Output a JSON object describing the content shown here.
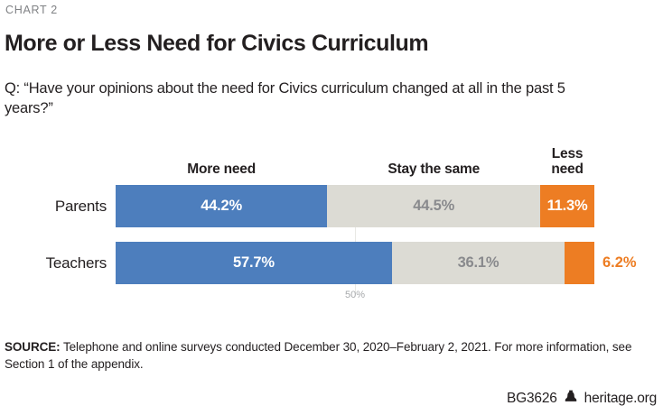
{
  "eyebrow": "CHART 2",
  "title": "More or Less Need for Civics Curriculum",
  "question": "Q: “Have your opinions about the need for Civics curriculum changed at all in the past 5 years?”",
  "chart_data": {
    "type": "bar",
    "variant": "horizontal-stacked",
    "categories": [
      "Parents",
      "Teachers"
    ],
    "series": [
      {
        "name": "More need",
        "color": "#4d7ebd",
        "label_color": "#ffffff",
        "values": [
          44.2,
          57.7
        ]
      },
      {
        "name": "Stay the same",
        "color": "#dcdbd4",
        "label_color": "#898a8d",
        "values": [
          44.5,
          36.1
        ]
      },
      {
        "name": "Less need",
        "color": "#ed7d23",
        "label_color": "#ffffff",
        "values": [
          11.3,
          6.2
        ]
      }
    ],
    "value_labels": [
      [
        "44.2%",
        "44.5%",
        "11.3%"
      ],
      [
        "57.7%",
        "36.1%",
        "6.2%"
      ]
    ],
    "xlim": [
      0,
      100
    ],
    "tick": {
      "value": 50,
      "label": "50%"
    },
    "outside_label_threshold": 8,
    "legend_position": "column-headers-above-bars",
    "grid": "single-vertical-50"
  },
  "source": {
    "label": "SOURCE:",
    "text": "Telephone and online surveys conducted December 30, 2020–February 2, 2021. For more information, see Section 1 of the appendix."
  },
  "footer": {
    "report_id": "BG3626",
    "site": "heritage.org"
  }
}
